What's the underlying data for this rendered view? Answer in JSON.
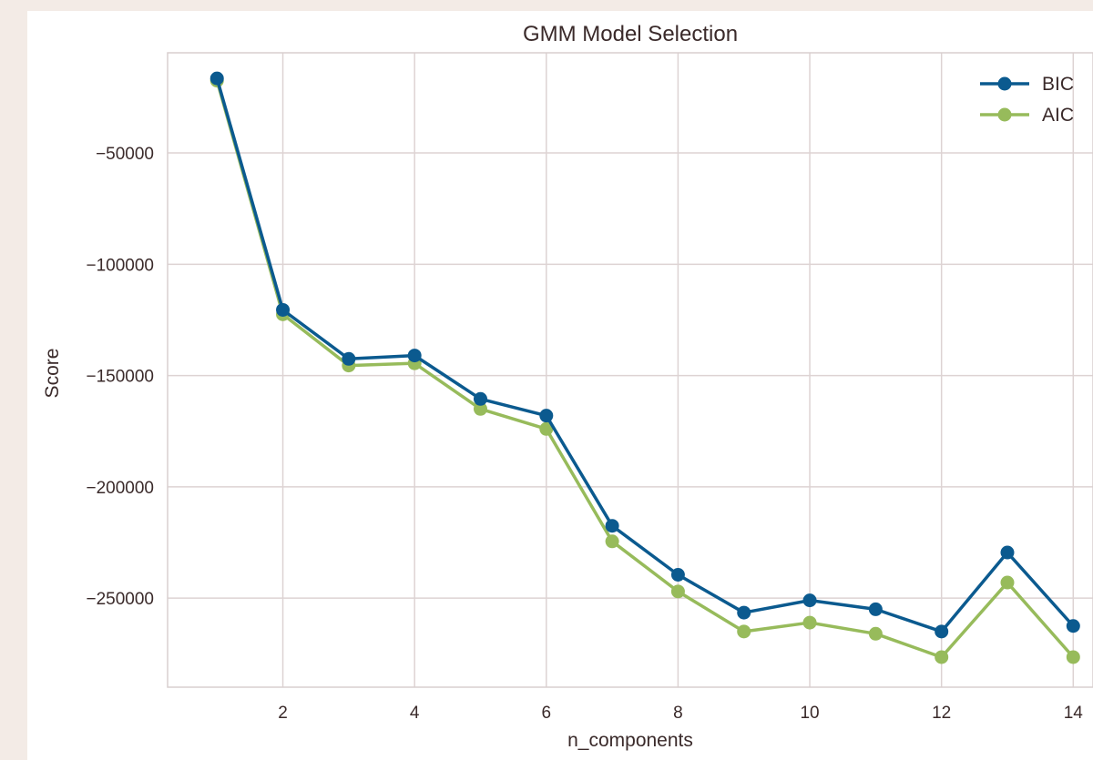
{
  "chart_data": {
    "type": "line",
    "title": "GMM Model Selection",
    "xlabel": "n_components",
    "ylabel": "Score",
    "x": [
      1,
      2,
      3,
      4,
      5,
      6,
      7,
      8,
      9,
      10,
      11,
      12,
      13,
      14
    ],
    "xlim": [
      0.25,
      14.3
    ],
    "ylim": [
      -290000,
      -5000
    ],
    "xticks": [
      2,
      4,
      6,
      8,
      10,
      12,
      14
    ],
    "yticks": [
      -50000,
      -100000,
      -150000,
      -200000,
      -250000
    ],
    "ytick_labels": [
      "−50000",
      "−100000",
      "−150000",
      "−200000",
      "−250000"
    ],
    "grid": true,
    "legend_position": "top-right",
    "series": [
      {
        "name": "BIC",
        "color": "#0b5a8f",
        "values": [
          -16500,
          -120500,
          -142500,
          -141000,
          -160500,
          -168000,
          -217500,
          -239500,
          -256500,
          -251000,
          -255000,
          -265000,
          -229500,
          -262500
        ]
      },
      {
        "name": "AIC",
        "color": "#97bb5b",
        "values": [
          -17500,
          -122500,
          -145500,
          -144500,
          -165000,
          -174000,
          -224500,
          -247000,
          -265000,
          -261000,
          -266000,
          -276500,
          -243000,
          -276500
        ]
      }
    ]
  }
}
